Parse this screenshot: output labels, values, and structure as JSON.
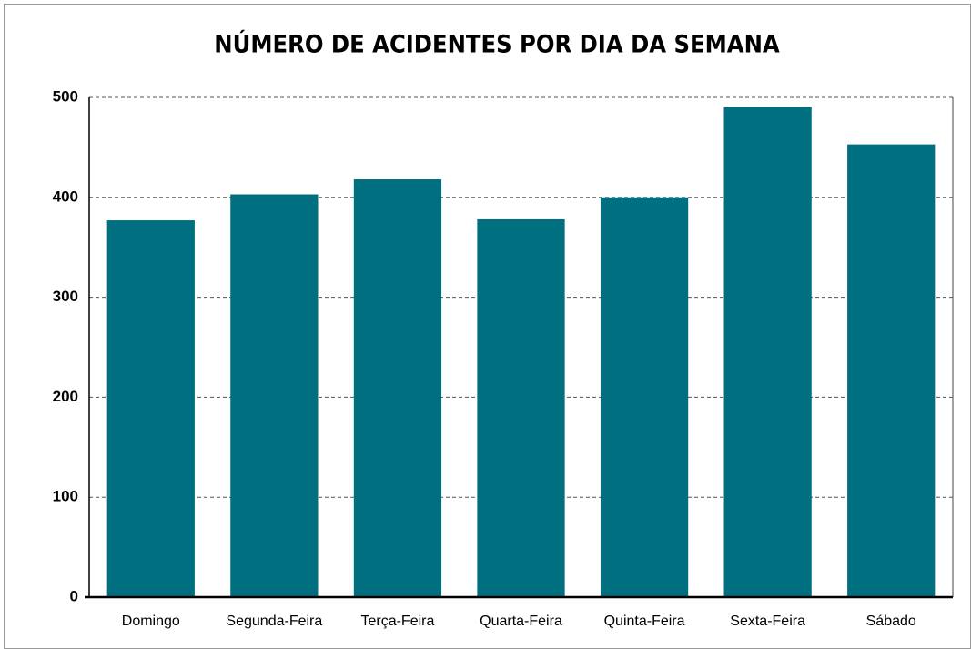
{
  "chart_data": {
    "type": "bar",
    "title": "NÚMERO DE ACIDENTES POR DIA DA SEMANA",
    "categories": [
      "Domingo",
      "Segunda-Feira",
      "Terça-Feira",
      "Quarta-Feira",
      "Quinta-Feira",
      "Sexta-Feira",
      "Sábado"
    ],
    "values": [
      377,
      403,
      418,
      378,
      400,
      490,
      453
    ],
    "color": "#006f80",
    "ylim": [
      0,
      500
    ],
    "yticks": [
      0,
      100,
      200,
      300,
      400,
      500
    ],
    "grid": true
  }
}
